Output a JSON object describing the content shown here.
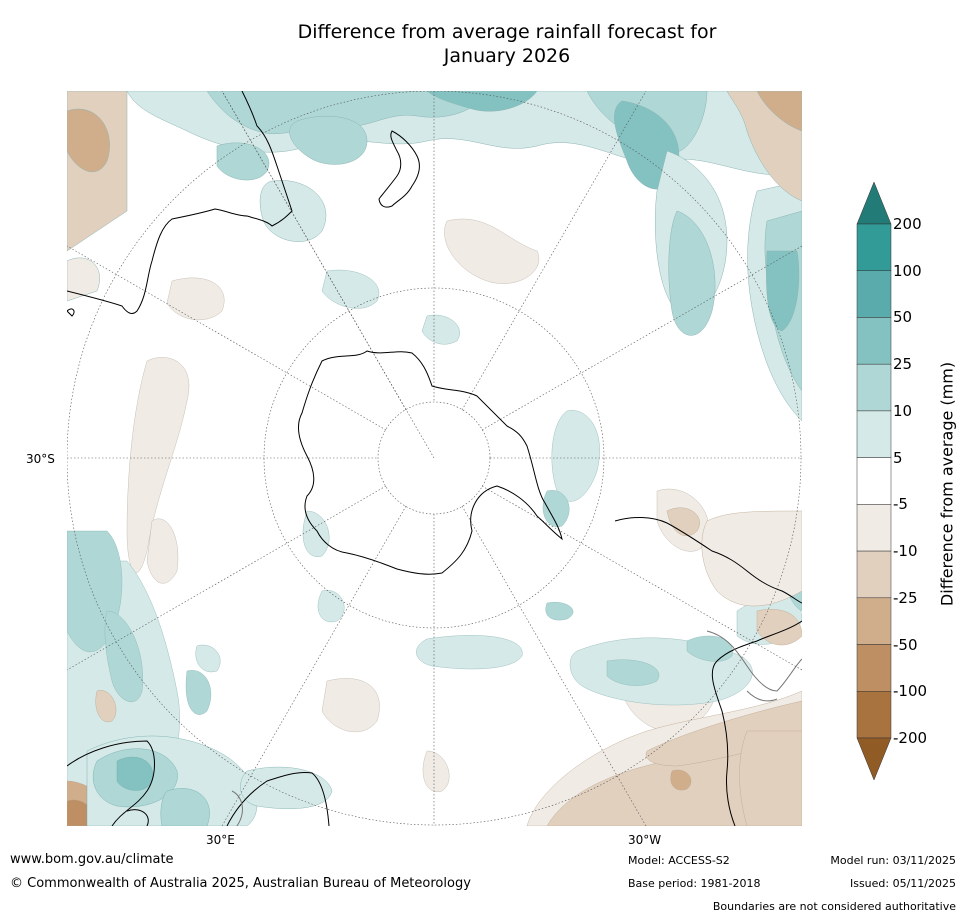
{
  "title_line1": "Difference from average rainfall forecast for",
  "title_line2": "January 2026",
  "map": {
    "lat_label": "30°S",
    "lon_labels": [
      "30°E",
      "30°W"
    ]
  },
  "colorbar": {
    "title": "Difference from average (mm)",
    "ticks": [
      "200",
      "100",
      "50",
      "25",
      "10",
      "5",
      "-5",
      "-10",
      "-25",
      "-50",
      "-100",
      "-200"
    ],
    "colors": {
      "gt200": "#237b78",
      "100_200": "#329b98",
      "50_100": "#5aacac",
      "25_50": "#83c2c1",
      "10_25": "#aed7d6",
      "5_10": "#d5e9e8",
      "neutral": "#ffffff",
      "m5_m10": "#f0ebe5",
      "m10_m25": "#e2d0bf",
      "m25_m50": "#d0ae8c",
      "m50_m100": "#bd8f63",
      "m100_m200": "#a8733f",
      "lt200": "#915b26"
    }
  },
  "footer": {
    "website": "www.bom.gov.au/climate",
    "copyright": "© Commonwealth of Australia 2025, Australian Bureau of Meteorology",
    "model": "Model: ACCESS-S2",
    "base_period": "Base period: 1981-2018",
    "model_run": "Model run: 03/11/2025",
    "issued": "Issued: 05/11/2025",
    "disclaimer": "Boundaries are not considered authoritative"
  }
}
